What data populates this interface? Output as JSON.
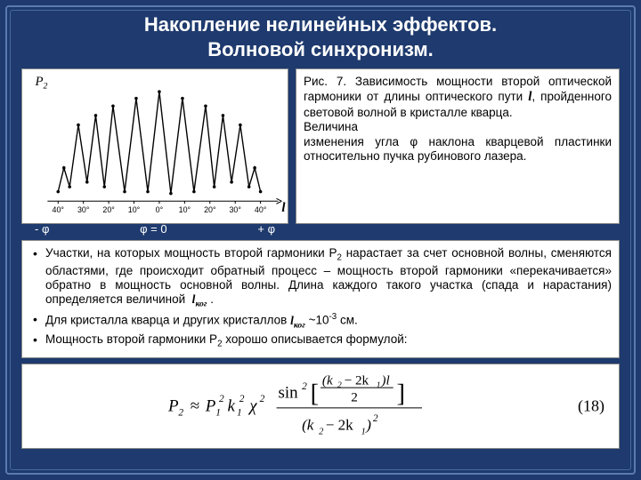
{
  "title_line1": "Накопление нелинейных эффектов.",
  "title_line2": "Волновой синхронизм.",
  "graph": {
    "type": "line",
    "ylabel": "P₂",
    "xticks": [
      "40°",
      "30°",
      "20°",
      "10°",
      "0°",
      "10°",
      "20°",
      "30°",
      "40°"
    ],
    "points": [
      [
        0,
        10
      ],
      [
        4,
        35
      ],
      [
        8,
        15
      ],
      [
        14,
        80
      ],
      [
        20,
        20
      ],
      [
        26,
        90
      ],
      [
        32,
        15
      ],
      [
        38,
        100
      ],
      [
        46,
        10
      ],
      [
        54,
        108
      ],
      [
        62,
        10
      ],
      [
        70,
        115
      ],
      [
        78,
        8
      ],
      [
        86,
        108
      ],
      [
        94,
        10
      ],
      [
        102,
        100
      ],
      [
        108,
        15
      ],
      [
        114,
        90
      ],
      [
        120,
        20
      ],
      [
        126,
        80
      ],
      [
        132,
        15
      ],
      [
        136,
        35
      ],
      [
        140,
        10
      ]
    ],
    "stroke": "#000000",
    "stroke_width": 1.4,
    "marker_radius": 1.8,
    "background": "#ffffff",
    "width_units": 140,
    "height_units": 120
  },
  "phi": {
    "left": "- φ",
    "mid": "φ = 0",
    "right": "+ φ"
  },
  "caption": {
    "p1a": "Рис. 7. Зависимость мощности второй оптической гармоники от длины оптического пути ",
    "p1b": ", пройденного световой волной в кристалле кварца.",
    "p2": "Величина",
    "p3": "изменения угла φ наклона кварцевой пластинки относительно пучка рубинового лазера."
  },
  "bullets": {
    "b1a": "Участки, на которых мощность второй гармоники P",
    "b1b": " нарастает за счет основной волны, сменяются областями, где происходит обратный процесс – мощность второй гармоники «перекачивается» обратно в мощность основной волны. Длина каждого такого участка (спада и нарастания) определяется величиной ",
    "b2a": "Для кристалла кварца и других кристаллов   ",
    "b2b": "  ~10",
    "b2c": " см.",
    "b3": "Мощность второй гармоники P",
    "b3b": " хорошо описывается формулой:"
  },
  "formula": {
    "eq_number": "(18)",
    "colors": {
      "text": "#000000"
    }
  }
}
